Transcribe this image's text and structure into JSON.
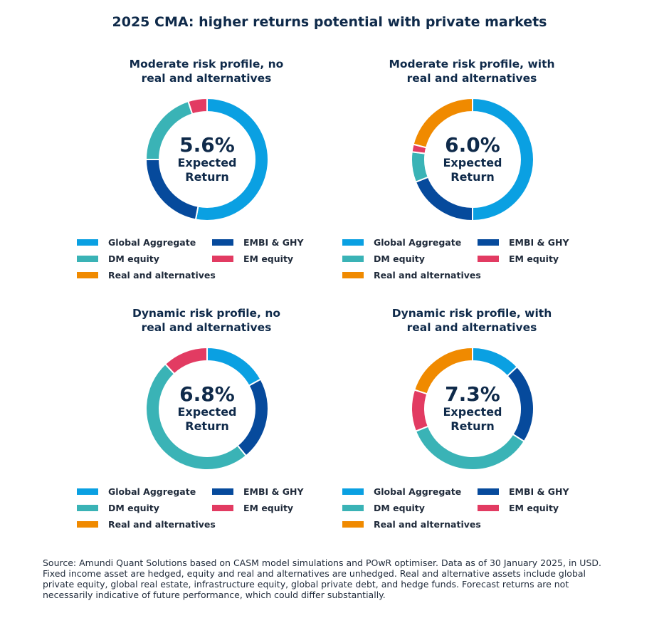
{
  "title": "2025 CMA: higher returns potential with private markets",
  "colors": {
    "Global Aggregate": "#0aa0e2",
    "EMBI & GHY": "#064a9c",
    "DM equity": "#3ab3b6",
    "EM equity": "#e23b62",
    "Real and alternatives": "#f08a00"
  },
  "legend_order": [
    "Global Aggregate",
    "EMBI & GHY",
    "DM equity",
    "EM equity",
    "Real and alternatives"
  ],
  "chart_data": [
    {
      "type": "pie",
      "title": "Moderate risk profile, no real and alternatives",
      "title_lines": [
        "Moderate risk profile, no",
        "real and alternatives"
      ],
      "center_value": "5.6%",
      "center_caption_lines": [
        "Expected",
        "Return"
      ],
      "categories": [
        "Global Aggregate",
        "EMBI & GHY",
        "DM equity",
        "EM equity",
        "Real and alternatives"
      ],
      "values": [
        53,
        22,
        20,
        5,
        0
      ]
    },
    {
      "type": "pie",
      "title": "Moderate risk profile, with real and alternatives",
      "title_lines": [
        "Moderate risk profile, with",
        "real and alternatives"
      ],
      "center_value": "6.0%",
      "center_caption_lines": [
        "Expected",
        "Return"
      ],
      "categories": [
        "Global Aggregate",
        "EMBI & GHY",
        "DM equity",
        "EM equity",
        "Real and alternatives"
      ],
      "values": [
        50,
        19,
        8,
        2,
        21
      ]
    },
    {
      "type": "pie",
      "title": "Dynamic risk profile, no real and alternatives",
      "title_lines": [
        "Dynamic risk profile, no",
        "real and alternatives"
      ],
      "center_value": "6.8%",
      "center_caption_lines": [
        "Expected",
        "Return"
      ],
      "categories": [
        "Global Aggregate",
        "EMBI & GHY",
        "DM equity",
        "EM equity",
        "Real and alternatives"
      ],
      "values": [
        17,
        22,
        49,
        12,
        0
      ]
    },
    {
      "type": "pie",
      "title": "Dynamic risk profile, with real and alternatives",
      "title_lines": [
        "Dynamic risk profile, with",
        "real and alternatives"
      ],
      "center_value": "7.3%",
      "center_caption_lines": [
        "Expected",
        "Return"
      ],
      "categories": [
        "Global Aggregate",
        "EMBI & GHY",
        "DM equity",
        "EM equity",
        "Real and alternatives"
      ],
      "values": [
        13,
        21,
        35,
        11,
        20
      ]
    }
  ],
  "source": "Source: Amundi Quant Solutions based on CASM model simulations and POwR optimiser. Data as of 30 January 2025, in USD. Fixed income asset are hedged, equity and real and alternatives are unhedged. Real and alternative assets include global private equity, global real estate, infrastructure equity, global private debt, and hedge funds. Forecast returns are not necessarily indicative of future performance, which could differ substantially."
}
